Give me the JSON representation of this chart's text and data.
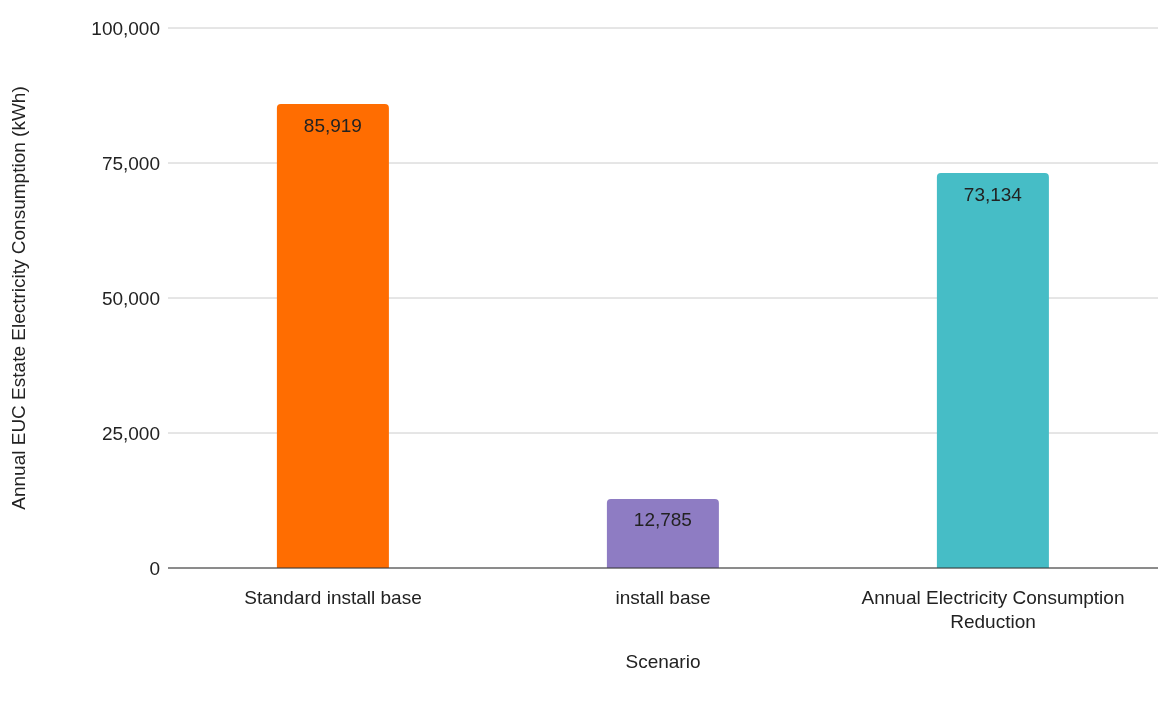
{
  "chart_data": {
    "type": "bar",
    "xlabel": "Scenario",
    "ylabel": "Annual EUC Estate Electricity Consumption (kWh)",
    "categories": [
      "Standard install base",
      "install base",
      "Annual Electricity Consumption Reduction"
    ],
    "values": [
      85919,
      12785,
      73134
    ],
    "value_labels": [
      "85,919",
      "12,785",
      "73,134"
    ],
    "colors": [
      "#ff6d01",
      "#8e7cc3",
      "#46bdc6"
    ],
    "ylim": [
      0,
      100000
    ],
    "yticks": [
      0,
      {
        "value": 25000,
        "label": "25,000"
      },
      {
        "value": 50000,
        "label": "50,000"
      },
      {
        "value": 75000,
        "label": "75,000"
      },
      {
        "value": 100000,
        "label": "100,000"
      }
    ],
    "grid": "y"
  }
}
